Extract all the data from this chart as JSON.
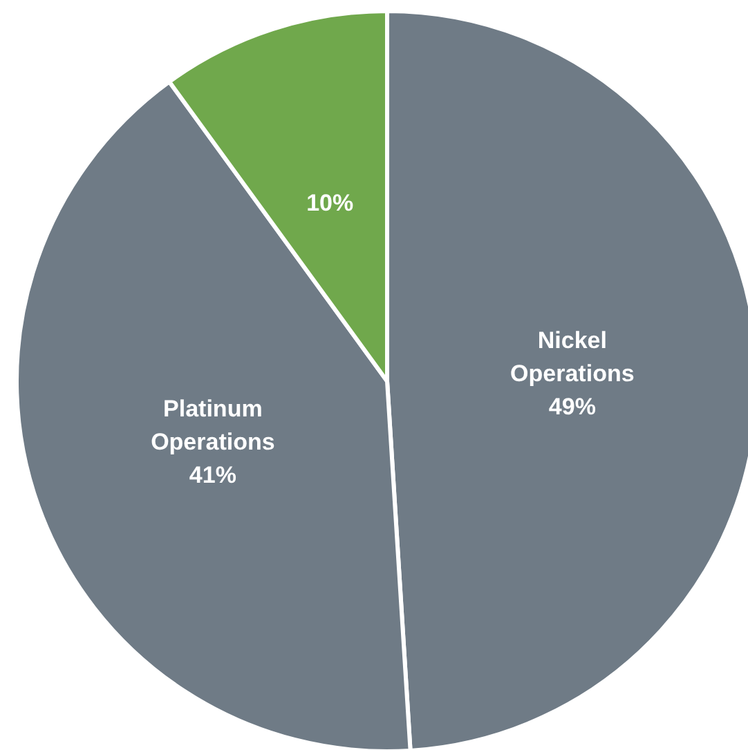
{
  "chart_data": {
    "type": "pie",
    "categories": [
      "Nickel Operations",
      "Platinum Operations",
      null
    ],
    "values": [
      49,
      41,
      10
    ],
    "colors": [
      "#6f7b86",
      "#6f7b86",
      "#70a84c"
    ],
    "value_labels": [
      "49%",
      "41%",
      "10%"
    ]
  }
}
